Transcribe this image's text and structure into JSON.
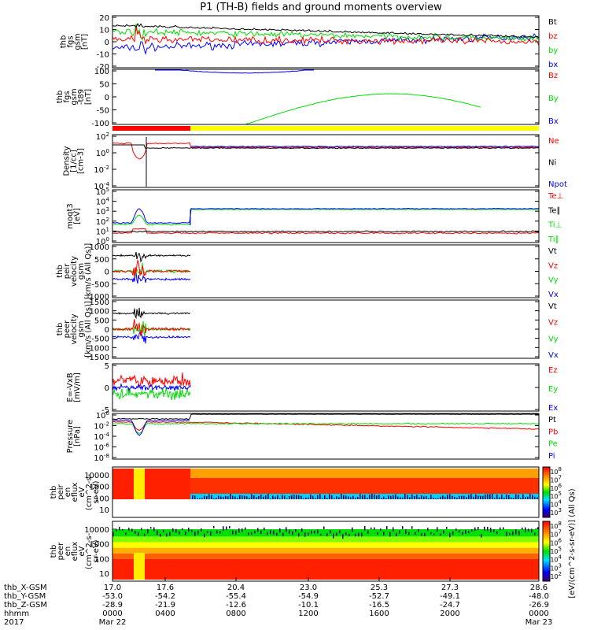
{
  "title": "P1 (TH-B) fields and ground moments overview",
  "colors": {
    "black": "#000000",
    "red": "#ff0000",
    "green": "#00dd00",
    "blue": "#0000ff",
    "yellow": "#ffff00"
  },
  "chart_data": [
    {
      "type": "line",
      "ylabel": [
        "thb",
        "fgs",
        "gsm",
        "[nT]"
      ],
      "yticks": [
        "20",
        "10",
        "0",
        "-10",
        "-20"
      ],
      "ylim": [
        -20,
        20
      ],
      "legend": [
        {
          "name": "Bt",
          "color": "black"
        },
        {
          "name": "bz",
          "color": "red"
        },
        {
          "name": "by",
          "color": "green"
        },
        {
          "name": "bx",
          "color": "blue"
        }
      ]
    },
    {
      "type": "line",
      "ylabel": [
        "thb",
        "fgs",
        "gsm",
        "-t89",
        "[nT]"
      ],
      "yticks": [
        "100",
        "50",
        "0",
        "-50",
        "-100"
      ],
      "ylim": [
        -125,
        100
      ],
      "legend": [
        {
          "name": "Bz",
          "color": "red"
        },
        {
          "name": "By",
          "color": "green"
        },
        {
          "name": "Bx",
          "color": "blue"
        }
      ]
    },
    {
      "type": "line",
      "ylabel": [
        "Density",
        "[1/cc]",
        "[cm-3]"
      ],
      "yticks": [
        "10^2",
        "10^0",
        "10^-2",
        "10^-4"
      ],
      "legend": [
        {
          "name": "Ne",
          "color": "red"
        },
        {
          "name": "Ni",
          "color": "black"
        },
        {
          "name": "Npot",
          "color": "blue"
        }
      ]
    },
    {
      "type": "line",
      "ylabel": [
        "moqt3",
        "[eV]"
      ],
      "yticks": [
        "10^5",
        "10^4",
        "10^3",
        "10^2",
        "10^1",
        "10^0"
      ],
      "legend": [
        {
          "name": "Te⊥",
          "color": "red"
        },
        {
          "name": "Te∥",
          "color": "black"
        },
        {
          "name": "Ti⊥",
          "color": "green"
        },
        {
          "name": "Ti∥",
          "color": "green"
        }
      ]
    },
    {
      "type": "line",
      "ylabel": [
        "thb",
        "peir",
        "velocity",
        "gsm",
        "[km/s (All Qs)]"
      ],
      "yticks": [
        "1000",
        "500",
        "0",
        "-500",
        "-1000"
      ],
      "legend": [
        {
          "name": "Vt",
          "color": "black"
        },
        {
          "name": "Vz",
          "color": "red"
        },
        {
          "name": "Vy",
          "color": "green"
        },
        {
          "name": "Vx",
          "color": "blue"
        }
      ]
    },
    {
      "type": "line",
      "ylabel": [
        "thb",
        "peer",
        "velocity",
        "gsm",
        "[km/s (All Qs)]"
      ],
      "yticks": [
        "1500",
        "1000",
        "500",
        "0",
        "-500",
        "-1000",
        "-1500"
      ],
      "legend": [
        {
          "name": "Vt",
          "color": "black"
        },
        {
          "name": "Vz",
          "color": "red"
        },
        {
          "name": "Vy",
          "color": "green"
        },
        {
          "name": "Vx",
          "color": "blue"
        }
      ]
    },
    {
      "type": "line",
      "ylabel": [
        "E=-VxB",
        "[mV/m]"
      ],
      "yticks": [
        "5",
        "0",
        "-5"
      ],
      "legend": [
        {
          "name": "Ez",
          "color": "red"
        },
        {
          "name": "Ey",
          "color": "green"
        },
        {
          "name": "Ex",
          "color": "blue"
        }
      ]
    },
    {
      "type": "line",
      "ylabel": [
        "Pressure",
        "[nPa]"
      ],
      "yticks": [
        "10^0",
        "10^-2",
        "10^-4",
        "10^-6",
        "10^-8"
      ],
      "legend": [
        {
          "name": "Pt",
          "color": "black"
        },
        {
          "name": "Pb",
          "color": "red"
        },
        {
          "name": "Pe",
          "color": "green"
        },
        {
          "name": "Pi",
          "color": "blue"
        }
      ]
    },
    {
      "type": "heatmap",
      "ylabel": [
        "thb",
        "peir",
        "en",
        "eflux",
        "eV",
        "(cm^2-s-",
        "sr-eV)"
      ],
      "yticks": [
        "10000",
        "1000",
        "100",
        "10"
      ]
    },
    {
      "type": "heatmap",
      "ylabel": [
        "thb",
        "peer",
        "en",
        "eflux",
        "eV",
        "(cm^2-s-",
        "sr-eV)"
      ],
      "yticks": [
        "10000",
        "1000",
        "100",
        "10"
      ]
    }
  ],
  "colorbar": {
    "label": "[eV/(cm^2-s-sr-eV)] (All Qs)",
    "ticks_upper": [
      "10^8",
      "10^7",
      "10^6",
      "10^5",
      "10^4",
      "10^3"
    ],
    "ticks_lower": [
      "10^8",
      "10^7",
      "10^6",
      "10^5",
      "10^4",
      "10^3",
      "10^2"
    ]
  },
  "xaxis": {
    "rows": [
      {
        "label": "thb_X-GSM",
        "values": [
          "17.0",
          "17.6",
          "20.4",
          "23.0",
          "25.3",
          "27.3",
          "28.6"
        ]
      },
      {
        "label": "thb_Y-GSM",
        "values": [
          "-53.0",
          "-54.2",
          "-55.4",
          "-54.9",
          "-52.7",
          "-49.1",
          "-48.0"
        ]
      },
      {
        "label": "thb_Z-GSM",
        "values": [
          "-28.9",
          "-21.9",
          "-12.6",
          "-10.1",
          "-16.5",
          "-24.7",
          "-26.9"
        ]
      },
      {
        "label": "hhmm",
        "values": [
          "0000",
          "0400",
          "0800",
          "1200",
          "1600",
          "2000",
          "0000"
        ]
      }
    ],
    "year": "2017",
    "dates": [
      {
        "text": "Mar 22",
        "tick": 0
      },
      {
        "text": "Mar 23",
        "tick": 6
      }
    ]
  }
}
